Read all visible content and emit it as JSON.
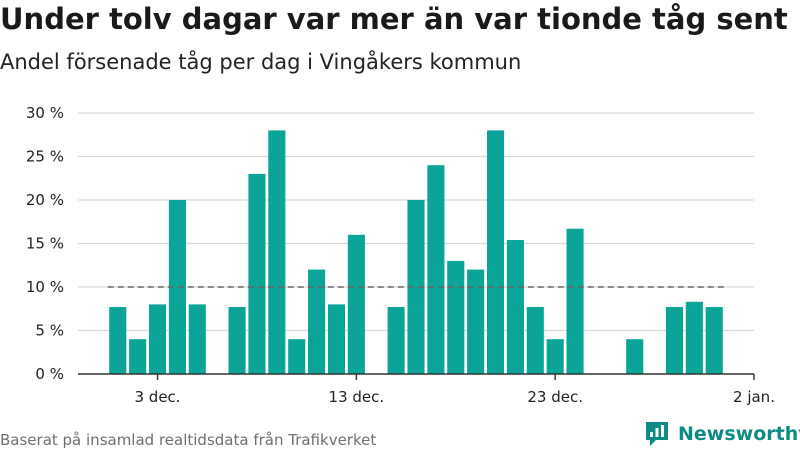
{
  "title": "Under tolv dagar var mer än var tionde tåg sent",
  "subtitle": "Andel försenade tåg per dag i Vingåkers kommun",
  "footer": "Baserat på insamlad realtidsdata från Trafikverket",
  "brand": {
    "name": "Newsworthy",
    "icon": "bar-chart-logo-icon",
    "color": "#0b8c84"
  },
  "colors": {
    "bar": "#0aa598",
    "grid": "#d9d9d9",
    "reference": "#666666",
    "axis": "#333333"
  },
  "chart_data": {
    "type": "bar",
    "x_type": "date",
    "y_unit": "%",
    "ylim": [
      0,
      30
    ],
    "yticks": [
      0,
      5,
      10,
      15,
      20,
      25,
      30
    ],
    "ytick_labels": [
      "0 %",
      "5 %",
      "10 %",
      "15 %",
      "20 %",
      "25 %",
      "30 %"
    ],
    "xlim": [
      "2018-11-29",
      "2019-01-02"
    ],
    "xticks": [
      "2018-12-03",
      "2018-12-13",
      "2018-12-23",
      "2019-01-02"
    ],
    "xtick_labels": [
      "3 dec.",
      "13 dec.",
      "23 dec.",
      "2 jan."
    ],
    "grid": true,
    "reference_line": {
      "value": 10,
      "style": "dashed",
      "x_range": [
        "2018-12-01",
        "2018-12-31"
      ]
    },
    "series": [
      {
        "x": [
          "2018-12-01",
          "2018-12-02",
          "2018-12-03",
          "2018-12-04",
          "2018-12-05",
          "2018-12-07",
          "2018-12-08",
          "2018-12-09",
          "2018-12-10",
          "2018-12-11",
          "2018-12-12",
          "2018-12-13",
          "2018-12-15",
          "2018-12-16",
          "2018-12-17",
          "2018-12-18",
          "2018-12-19",
          "2018-12-20",
          "2018-12-21",
          "2018-12-22",
          "2018-12-23",
          "2018-12-24",
          "2018-12-27",
          "2018-12-29",
          "2018-12-30",
          "2018-12-31"
        ],
        "values": [
          7.7,
          4.0,
          8.0,
          20.0,
          8.0,
          7.7,
          23.0,
          28.0,
          4.0,
          12.0,
          8.0,
          16.0,
          7.7,
          20.0,
          24.0,
          13.0,
          12.0,
          28.0,
          15.4,
          7.7,
          4.0,
          16.7,
          4.0,
          7.7,
          8.3,
          7.7
        ]
      }
    ]
  }
}
